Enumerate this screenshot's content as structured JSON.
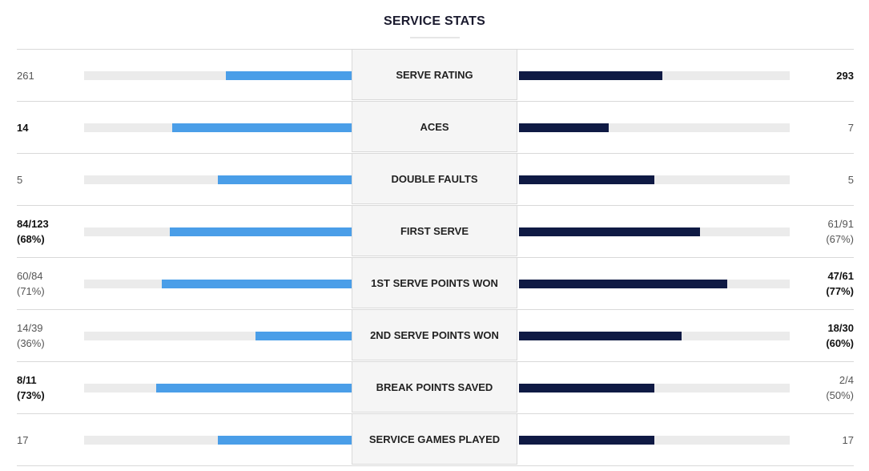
{
  "header": {
    "title": "SERVICE STATS"
  },
  "colors": {
    "left_bar": "#4a9ee8",
    "right_bar": "#0f1a44",
    "track": "#ebebeb"
  },
  "stats": [
    {
      "label": "SERVE RATING",
      "left": {
        "line1": "261",
        "line2": "",
        "bold": false,
        "fraction": 0.47
      },
      "right": {
        "line1": "293",
        "line2": "",
        "bold": true,
        "fraction": 0.53
      }
    },
    {
      "label": "ACES",
      "left": {
        "line1": "14",
        "line2": "",
        "bold": true,
        "fraction": 0.67
      },
      "right": {
        "line1": "7",
        "line2": "",
        "bold": false,
        "fraction": 0.33
      }
    },
    {
      "label": "DOUBLE FAULTS",
      "left": {
        "line1": "5",
        "line2": "",
        "bold": false,
        "fraction": 0.5
      },
      "right": {
        "line1": "5",
        "line2": "",
        "bold": false,
        "fraction": 0.5
      }
    },
    {
      "label": "FIRST SERVE",
      "left": {
        "line1": "84/123",
        "line2": "(68%)",
        "bold": true,
        "fraction": 0.68
      },
      "right": {
        "line1": "61/91",
        "line2": "(67%)",
        "bold": false,
        "fraction": 0.67
      }
    },
    {
      "label": "1ST SERVE POINTS WON",
      "left": {
        "line1": "60/84",
        "line2": "(71%)",
        "bold": false,
        "fraction": 0.71
      },
      "right": {
        "line1": "47/61",
        "line2": "(77%)",
        "bold": true,
        "fraction": 0.77
      }
    },
    {
      "label": "2ND SERVE POINTS WON",
      "left": {
        "line1": "14/39",
        "line2": "(36%)",
        "bold": false,
        "fraction": 0.36
      },
      "right": {
        "line1": "18/30",
        "line2": "(60%)",
        "bold": true,
        "fraction": 0.6
      }
    },
    {
      "label": "BREAK POINTS SAVED",
      "left": {
        "line1": "8/11",
        "line2": "(73%)",
        "bold": true,
        "fraction": 0.73
      },
      "right": {
        "line1": "2/4",
        "line2": "(50%)",
        "bold": false,
        "fraction": 0.5
      }
    },
    {
      "label": "SERVICE GAMES PLAYED",
      "left": {
        "line1": "17",
        "line2": "",
        "bold": false,
        "fraction": 0.5
      },
      "right": {
        "line1": "17",
        "line2": "",
        "bold": false,
        "fraction": 0.5
      }
    }
  ]
}
